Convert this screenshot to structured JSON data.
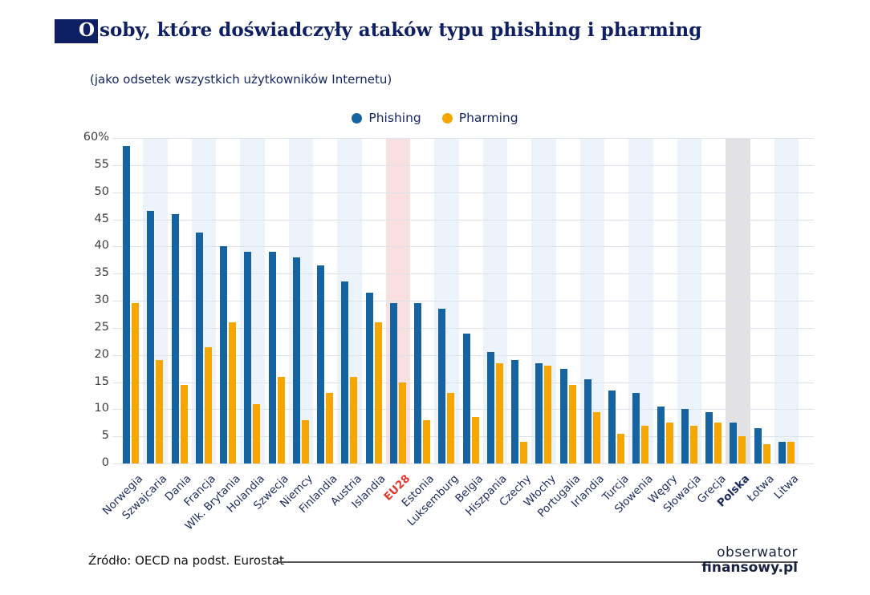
{
  "header": {
    "initial": "O",
    "title_rest": "soby, które doświadczyły ataków typu phishing i pharming",
    "title_full": "Osoby, które doświadczyły ataków typu phishing i pharming",
    "subtitle": "(jako odsetek wszystkich użytkowników Internetu)"
  },
  "legend": {
    "phishing": "Phishing",
    "pharming": "Pharming"
  },
  "chart_data": {
    "type": "bar",
    "title": "Osoby, które doświadczyły ataków typu phishing i pharming",
    "subtitle": "(jako odsetek wszystkich użytkowników Internetu)",
    "xlabel": "",
    "ylabel": "%",
    "ylim": [
      0,
      60
    ],
    "ytick_values": [
      0,
      5,
      10,
      15,
      20,
      25,
      30,
      35,
      40,
      45,
      50,
      55,
      60
    ],
    "ytick_top_label": "60%",
    "grid": true,
    "legend_position": "top-center",
    "categories": [
      "Norwegia",
      "Szwajcaria",
      "Dania",
      "Francja",
      "Wlk. Brytania",
      "Holandia",
      "Szwecja",
      "Niemcy",
      "Finlandia",
      "Austria",
      "Islandia",
      "EU28",
      "Estonia",
      "Luksemburg",
      "Belgia",
      "Hiszpania",
      "Czechy",
      "Włochy",
      "Portugalia",
      "Irlandia",
      "Turcja",
      "Słowenia",
      "Węgry",
      "Słowacja",
      "Grecja",
      "Polska",
      "Łotwa",
      "Litwa"
    ],
    "series": [
      {
        "name": "Phishing",
        "color": "#1563a0",
        "values": [
          58.5,
          46.5,
          46,
          42.5,
          40,
          39,
          39,
          38,
          36.5,
          33.5,
          31.5,
          29.5,
          29.5,
          28.5,
          24,
          20.5,
          19,
          18.5,
          17.5,
          15.5,
          13.5,
          13,
          10.5,
          10,
          9.5,
          7.5,
          6.5,
          4
        ]
      },
      {
        "name": "Pharming",
        "color": "#f5a600",
        "values": [
          29.5,
          19,
          14.5,
          21.5,
          26,
          11,
          16,
          8,
          13,
          16,
          26,
          15,
          8,
          13,
          8.5,
          18.5,
          4,
          18,
          14.5,
          9.5,
          5.5,
          7,
          7.5,
          7,
          7.5,
          5,
          3.5,
          4
        ]
      }
    ],
    "highlights": {
      "eu28": {
        "index": 11,
        "stripe_color": "#f7e0df",
        "label_color": "#e03a2f"
      },
      "polska": {
        "index": 25,
        "stripe_color": "#e2e2e5",
        "label_bold": true
      }
    },
    "colors": {
      "phishing": "#1563a0",
      "pharming": "#f5a600",
      "stripe": "#edf3fa",
      "grid": "#dde3ec",
      "axis_text": "#3f3f3f",
      "label_text": "#1c2b5e",
      "title_navy": "#0e2063"
    }
  },
  "footer": {
    "source": "Źródło: OECD na podst. Eurostat",
    "logo_line1": "obserwator",
    "logo_line2": "finansowy.pl"
  }
}
